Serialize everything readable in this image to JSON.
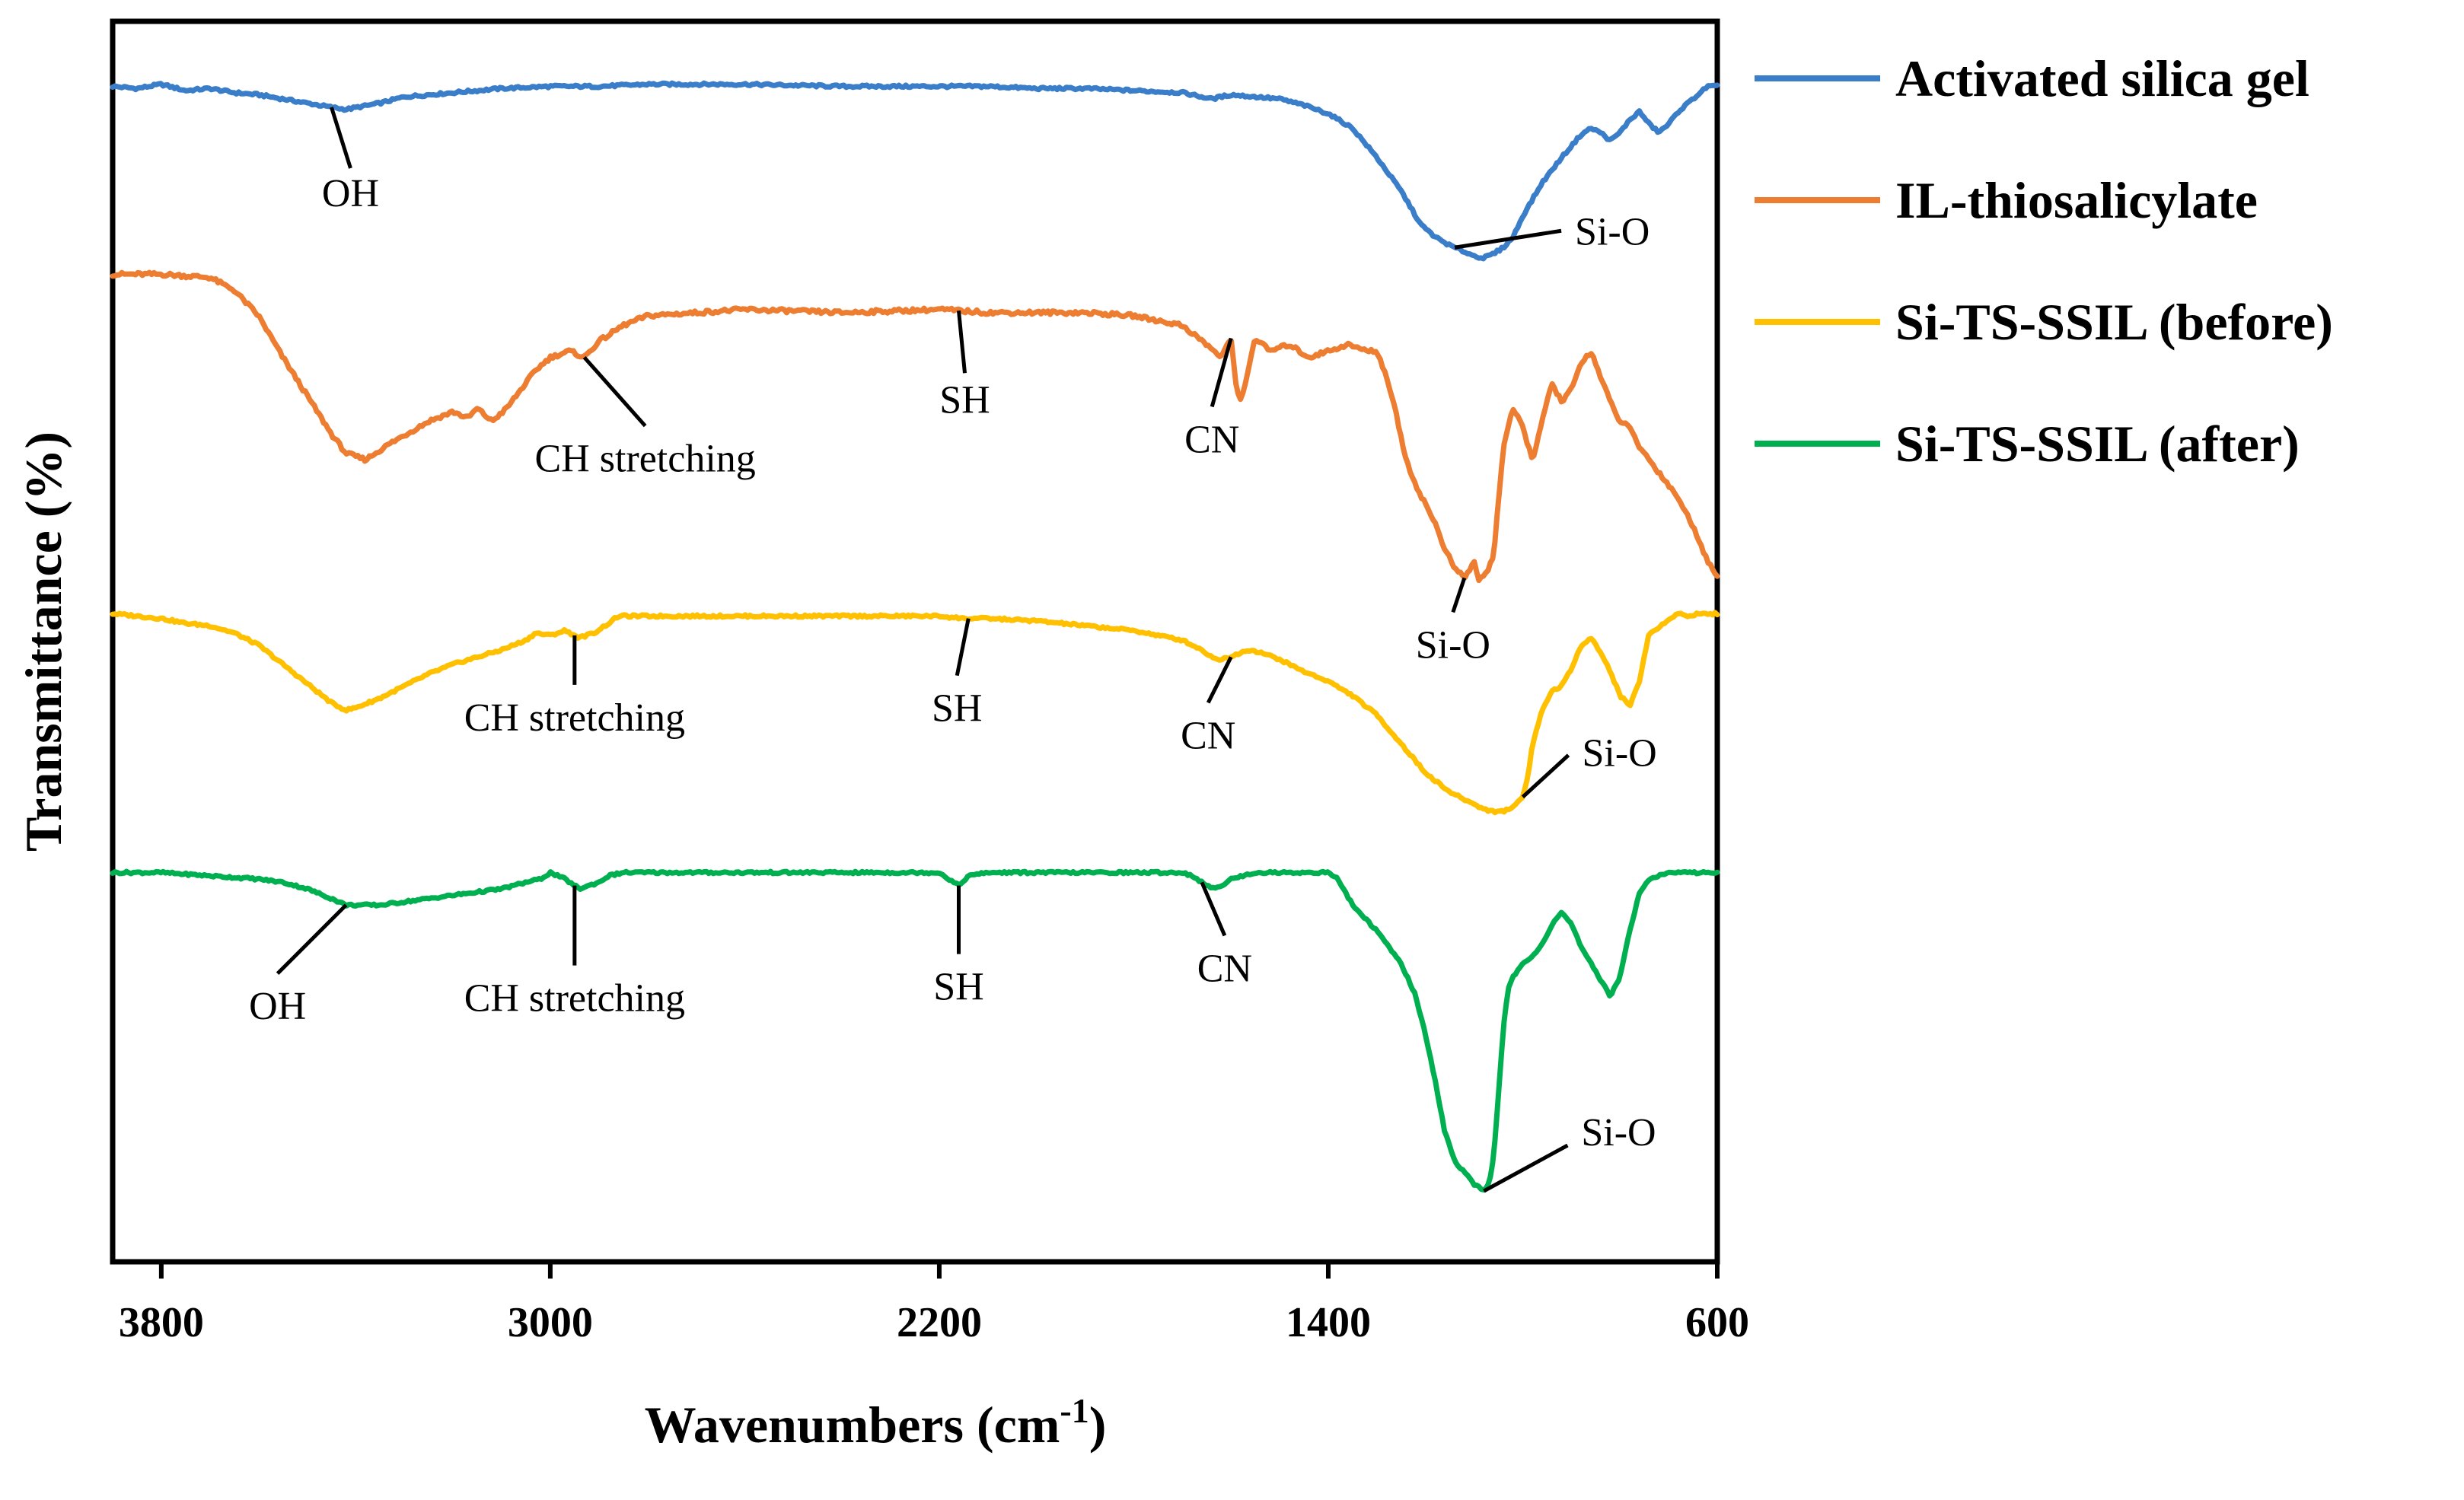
{
  "chart_data": {
    "type": "line",
    "title": "",
    "xlabel": "Wavenumbers (cm-1)",
    "xlabel_main": "Wavenumbers (cm",
    "xlabel_sup": "-1",
    "xlabel_close": ")",
    "ylabel": "Transmittance (%)",
    "xlim": [
      3900,
      600
    ],
    "x_reversed": true,
    "grid": false,
    "y_ticks_shown": false,
    "y_units": "relative transmittance (arbitrary, offset stacked)",
    "xticks": [
      {
        "value": 3800,
        "label": "3800"
      },
      {
        "value": 3000,
        "label": "3000"
      },
      {
        "value": 2200,
        "label": "2200"
      },
      {
        "value": 1400,
        "label": "1400"
      },
      {
        "value": 600,
        "label": "600"
      }
    ],
    "legend_position": "right",
    "series": [
      {
        "name": "Activated silica gel",
        "color": "#3A7DC9",
        "x": [
          3900,
          3850,
          3800,
          3750,
          3700,
          3650,
          3600,
          3550,
          3500,
          3450,
          3420,
          3350,
          3300,
          3200,
          3100,
          3000,
          2900,
          2800,
          2600,
          2400,
          2200,
          2100,
          2000,
          1900,
          1800,
          1700,
          1640,
          1600,
          1550,
          1500,
          1450,
          1400,
          1350,
          1300,
          1250,
          1210,
          1180,
          1150,
          1120,
          1100,
          1080,
          1060,
          1040,
          1020,
          1000,
          960,
          920,
          880,
          860,
          840,
          820,
          800,
          780,
          760,
          740,
          720,
          700,
          680,
          650,
          620,
          600
        ],
        "values": [
          98,
          97,
          99,
          96,
          97,
          95,
          94,
          92,
          90,
          88,
          87,
          90,
          93,
          95,
          97,
          98,
          98,
          99,
          99,
          98,
          98,
          98,
          97,
          97,
          96,
          95,
          92,
          94,
          93,
          92,
          89,
          85,
          78,
          64,
          48,
          32,
          26,
          22,
          19,
          17,
          16,
          18,
          21,
          26,
          36,
          52,
          64,
          75,
          78,
          76,
          72,
          76,
          82,
          86,
          80,
          76,
          80,
          86,
          92,
          98,
          98
        ],
        "noise": 1.2
      },
      {
        "name": "IL-thiosalicylate",
        "color": "#ED7D31",
        "x": [
          3900,
          3800,
          3700,
          3650,
          3600,
          3550,
          3500,
          3450,
          3420,
          3380,
          3330,
          3250,
          3200,
          3170,
          3150,
          3120,
          3090,
          3060,
          3030,
          3000,
          2960,
          2930,
          2900,
          2850,
          2800,
          2700,
          2600,
          2400,
          2200,
          2100,
          2000,
          1900,
          1800,
          1700,
          1650,
          1620,
          1600,
          1590,
          1580,
          1570,
          1560,
          1550,
          1520,
          1480,
          1440,
          1400,
          1360,
          1320,
          1300,
          1280,
          1260,
          1240,
          1220,
          1200,
          1180,
          1160,
          1140,
          1120,
          1100,
          1090,
          1080,
          1070,
          1060,
          1040,
          1020,
          1000,
          980,
          960,
          940,
          920,
          900,
          880,
          860,
          840,
          820,
          800,
          780,
          760,
          740,
          720,
          700,
          680,
          660,
          640,
          620,
          600
        ],
        "values": [
          98,
          98,
          97,
          93,
          85,
          72,
          60,
          48,
          42,
          40,
          45,
          52,
          55,
          53,
          56,
          52,
          56,
          62,
          68,
          72,
          74,
          72,
          77,
          82,
          85,
          86,
          87,
          86,
          87,
          86,
          86,
          86,
          85,
          82,
          76,
          72,
          78,
          64,
          58,
          64,
          72,
          78,
          74,
          76,
          72,
          74,
          76,
          74,
          74,
          66,
          54,
          40,
          32,
          26,
          20,
          12,
          6,
          3,
          8,
          2,
          4,
          6,
          10,
          44,
          56,
          50,
          40,
          52,
          64,
          58,
          62,
          70,
          74,
          66,
          58,
          52,
          50,
          44,
          40,
          36,
          32,
          28,
          22,
          16,
          8,
          4
        ],
        "noise": 1.2
      },
      {
        "name": "Si-TS-SSIL (before)",
        "color": "#FFC000",
        "x": [
          3900,
          3850,
          3800,
          3750,
          3700,
          3650,
          3600,
          3550,
          3500,
          3450,
          3420,
          3400,
          3350,
          3300,
          3250,
          3200,
          3150,
          3100,
          3050,
          3030,
          3000,
          2970,
          2940,
          2910,
          2880,
          2860,
          2800,
          2600,
          2400,
          2200,
          2150,
          2100,
          2000,
          1900,
          1800,
          1700,
          1660,
          1640,
          1620,
          1600,
          1580,
          1560,
          1540,
          1500,
          1450,
          1400,
          1350,
          1300,
          1250,
          1200,
          1150,
          1100,
          1080,
          1060,
          1040,
          1020,
          1000,
          990,
          980,
          960,
          940,
          920,
          900,
          880,
          860,
          840,
          820,
          800,
          780,
          760,
          740,
          720,
          700,
          680,
          660,
          640,
          620,
          600
        ],
        "values": [
          98,
          97,
          96,
          94,
          93,
          90,
          85,
          77,
          69,
          61,
          58,
          59,
          63,
          68,
          73,
          77,
          80,
          83,
          87,
          90,
          89,
          91,
          88,
          90,
          94,
          97,
          97,
          97,
          97,
          97,
          96,
          96,
          95,
          93,
          91,
          87,
          83,
          80,
          79,
          80,
          82,
          83,
          82,
          79,
          74,
          70,
          64,
          56,
          44,
          32,
          24,
          19,
          17,
          16,
          16,
          18,
          22,
          30,
          44,
          58,
          66,
          68,
          75,
          85,
          88,
          82,
          74,
          64,
          60,
          70,
          90,
          92,
          96,
          98,
          97,
          98,
          98,
          98
        ],
        "noise": 1.0
      },
      {
        "name": "Si-TS-SSIL (after)",
        "color": "#00B050",
        "x": [
          3900,
          3800,
          3700,
          3600,
          3550,
          3500,
          3450,
          3420,
          3350,
          3300,
          3200,
          3100,
          3050,
          3020,
          3000,
          2970,
          2940,
          2900,
          2880,
          2850,
          2800,
          2600,
          2400,
          2200,
          2180,
          2160,
          2140,
          2100,
          2000,
          1800,
          1700,
          1680,
          1660,
          1640,
          1620,
          1600,
          1550,
          1500,
          1480,
          1450,
          1420,
          1400,
          1380,
          1350,
          1300,
          1250,
          1220,
          1200,
          1180,
          1160,
          1140,
          1120,
          1100,
          1080,
          1070,
          1060,
          1050,
          1040,
          1030,
          1020,
          1000,
          980,
          960,
          940,
          920,
          900,
          880,
          860,
          840,
          820,
          800,
          780,
          760,
          740,
          720,
          700,
          680,
          660,
          640,
          620,
          600
        ],
        "values": [
          98,
          98,
          97,
          96,
          95,
          93,
          90,
          88,
          88,
          89,
          91,
          93,
          95,
          96,
          98,
          96,
          93,
          95,
          97,
          98,
          98,
          98,
          98,
          98,
          96,
          94,
          97,
          98,
          98,
          98,
          98,
          97,
          95,
          93,
          94,
          96,
          98,
          98,
          98,
          98,
          98,
          98,
          96,
          88,
          80,
          70,
          60,
          48,
          34,
          18,
          9,
          6,
          2,
          0,
          2,
          10,
          30,
          50,
          62,
          66,
          70,
          72,
          76,
          82,
          86,
          82,
          75,
          70,
          65,
          60,
          66,
          80,
          92,
          96,
          97,
          98,
          98,
          98,
          98,
          98,
          98
        ],
        "noise": 0.7
      }
    ],
    "annotations": [
      {
        "text": "OH",
        "series": 0,
        "x": 3450
      },
      {
        "text": "Si-O",
        "series": 0,
        "x": 1140
      },
      {
        "text": "CH stretching",
        "series": 1,
        "x": 2930
      },
      {
        "text": "SH",
        "series": 1,
        "x": 2160
      },
      {
        "text": "CN",
        "series": 1,
        "x": 1600
      },
      {
        "text": "Si-O",
        "series": 1,
        "x": 1120
      },
      {
        "text": "CH stretching",
        "series": 2,
        "x": 2950
      },
      {
        "text": "SH",
        "series": 2,
        "x": 2140
      },
      {
        "text": "CN",
        "series": 2,
        "x": 1600
      },
      {
        "text": "Si-O",
        "series": 2,
        "x": 1000
      },
      {
        "text": "OH",
        "series": 3,
        "x": 3420
      },
      {
        "text": "CH stretching",
        "series": 3,
        "x": 2950
      },
      {
        "text": "SH",
        "series": 3,
        "x": 2160
      },
      {
        "text": "CN",
        "series": 3,
        "x": 1660
      },
      {
        "text": "Si-O",
        "series": 3,
        "x": 1080
      }
    ]
  }
}
